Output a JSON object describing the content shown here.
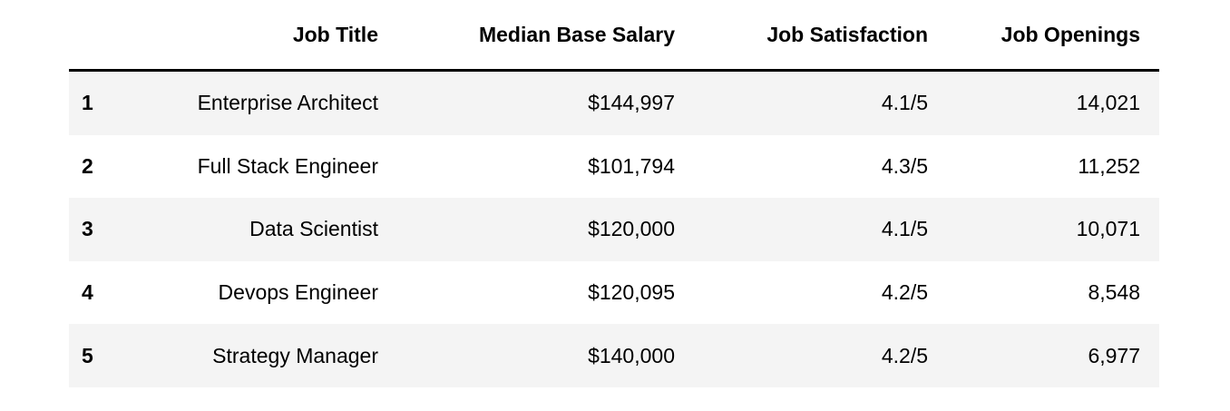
{
  "chart_data": {
    "type": "table",
    "columns": [
      "Job Title",
      "Median Base Salary",
      "Job Satisfaction",
      "Job Openings"
    ],
    "row_index_labels": [
      "1",
      "2",
      "3",
      "4",
      "5"
    ],
    "rows": [
      [
        "1",
        "Enterprise Architect",
        "$144,997",
        "4.1/5",
        "14,021"
      ],
      [
        "2",
        "Full Stack Engineer",
        "$101,794",
        "4.3/5",
        "11,252"
      ],
      [
        "3",
        "Data Scientist",
        "$120,000",
        "4.1/5",
        "10,071"
      ],
      [
        "4",
        "Devops Engineer",
        "$120,095",
        "4.2/5",
        "8,548"
      ],
      [
        "5",
        "Strategy Manager",
        "$140,000",
        "4.2/5",
        "6,977"
      ]
    ],
    "layout_hints": {
      "alignment": "numeric and text columns right-aligned, row numbers left-aligned bold",
      "striping": "rows 1,3,5 shaded",
      "grid": "no vertical gridlines, single heavy rule under header"
    }
  },
  "colors": {
    "background": "#ffffff",
    "stripe": "#f4f4f4",
    "header_rule": "#000000",
    "text": "#000000"
  }
}
